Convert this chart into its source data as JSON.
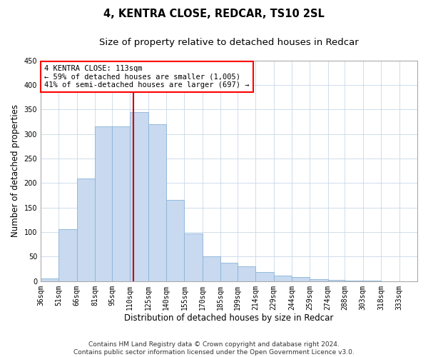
{
  "title1": "4, KENTRA CLOSE, REDCAR, TS10 2SL",
  "title2": "Size of property relative to detached houses in Redcar",
  "xlabel": "Distribution of detached houses by size in Redcar",
  "ylabel": "Number of detached properties",
  "bar_color": "#c8d9f0",
  "bar_edgecolor": "#8ab4d8",
  "grid_color": "#c8d8e8",
  "vline_x": 113,
  "vline_color": "#cc0000",
  "annotation_title": "4 KENTRA CLOSE: 113sqm",
  "annotation_line1": "← 59% of detached houses are smaller (1,005)",
  "annotation_line2": "41% of semi-detached houses are larger (697) →",
  "categories": [
    "36sqm",
    "51sqm",
    "66sqm",
    "81sqm",
    "95sqm",
    "110sqm",
    "125sqm",
    "140sqm",
    "155sqm",
    "170sqm",
    "185sqm",
    "199sqm",
    "214sqm",
    "229sqm",
    "244sqm",
    "259sqm",
    "274sqm",
    "288sqm",
    "303sqm",
    "318sqm",
    "333sqm"
  ],
  "bin_edges": [
    36,
    51,
    66,
    81,
    95,
    110,
    125,
    140,
    155,
    170,
    185,
    199,
    214,
    229,
    244,
    259,
    274,
    288,
    303,
    318,
    333,
    348
  ],
  "values": [
    6,
    106,
    210,
    315,
    315,
    345,
    320,
    165,
    97,
    51,
    37,
    30,
    19,
    11,
    9,
    4,
    2,
    1,
    1,
    0,
    0
  ],
  "ylim": [
    0,
    450
  ],
  "yticks": [
    0,
    50,
    100,
    150,
    200,
    250,
    300,
    350,
    400,
    450
  ],
  "footer_line1": "Contains HM Land Registry data © Crown copyright and database right 2024.",
  "footer_line2": "Contains public sector information licensed under the Open Government Licence v3.0.",
  "title_fontsize": 10.5,
  "subtitle_fontsize": 9.5,
  "xlabel_fontsize": 8.5,
  "ylabel_fontsize": 8.5,
  "tick_fontsize": 7,
  "footer_fontsize": 6.5,
  "annot_fontsize": 7.5
}
